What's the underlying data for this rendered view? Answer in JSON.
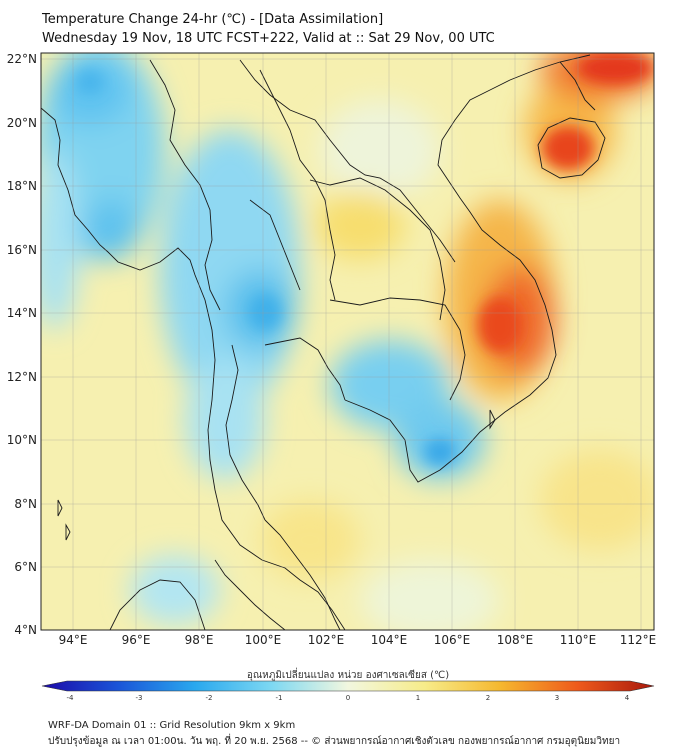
{
  "header": {
    "title": "Temperature Change 24-hr (℃) - [Data Assimilation]",
    "subtitle": "Wednesday 19 Nov, 18 UTC FCST+222, Valid at :: Sat 29 Nov, 00 UTC"
  },
  "map": {
    "lat_labels": [
      "22°N",
      "20°N",
      "18°N",
      "16°N",
      "14°N",
      "12°N",
      "10°N",
      "8°N",
      "6°N",
      "4°N"
    ],
    "lon_labels": [
      "94°E",
      "96°E",
      "98°E",
      "100°E",
      "102°E",
      "104°E",
      "106°E",
      "108°E",
      "110°E",
      "112°E"
    ]
  },
  "colorbar": {
    "label": "อุณหภูมิเปลี่ยนแปลง หน่วย องศาเซลเซียส (℃)",
    "ticks": [
      "-4",
      "-3",
      "-2",
      "-1",
      "0",
      "1",
      "2",
      "3",
      "4"
    ],
    "colors": [
      "#1c0aa8",
      "#1a55d8",
      "#2aa8ee",
      "#7dd8f2",
      "#f2f7df",
      "#f7ec8a",
      "#f5b72e",
      "#ee5a1c",
      "#a8180c"
    ]
  },
  "footer": {
    "line1": "WRF-DA Domain 01 :: Grid Resolution 9km x 9km",
    "line2": "ปรับปรุงข้อมูล ณ เวลา 01:00น. วัน พฤ. ที่ 20 พ.ย. 2568 -- © ส่วนพยากรณ์อากาศเชิงตัวเลข กองพยากรณ์อากาศ กรมอุตุนิยมวิทยา"
  }
}
